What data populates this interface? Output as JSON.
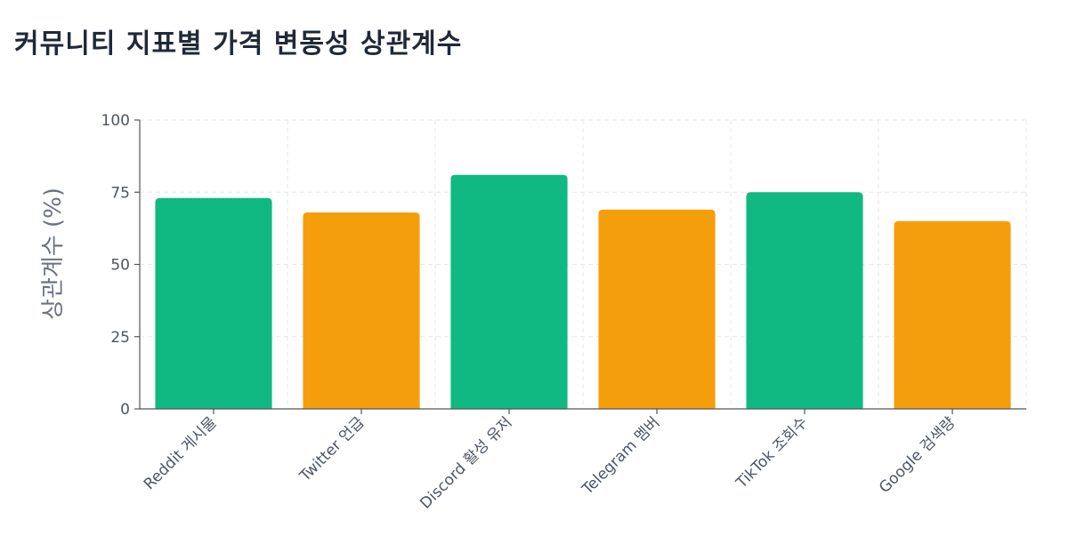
{
  "chart_data": {
    "type": "bar",
    "title": "커뮤니티 지표별 가격 변동성 상관계수",
    "xlabel": "",
    "ylabel": "상관계수 (%)",
    "categories": [
      "Reddit 게시물",
      "Twitter 언급",
      "Discord 활성 유저",
      "Telegram 멤버",
      "TikTok 조회수",
      "Google 검색량"
    ],
    "values": [
      73,
      68,
      81,
      69,
      75,
      65
    ],
    "bar_colors": [
      "#10b981",
      "#f59e0b",
      "#10b981",
      "#f59e0b",
      "#10b981",
      "#f59e0b"
    ],
    "ylim": [
      0,
      100
    ],
    "yticks": [
      0,
      25,
      50,
      75,
      100
    ],
    "grid": true,
    "legend": "none"
  }
}
